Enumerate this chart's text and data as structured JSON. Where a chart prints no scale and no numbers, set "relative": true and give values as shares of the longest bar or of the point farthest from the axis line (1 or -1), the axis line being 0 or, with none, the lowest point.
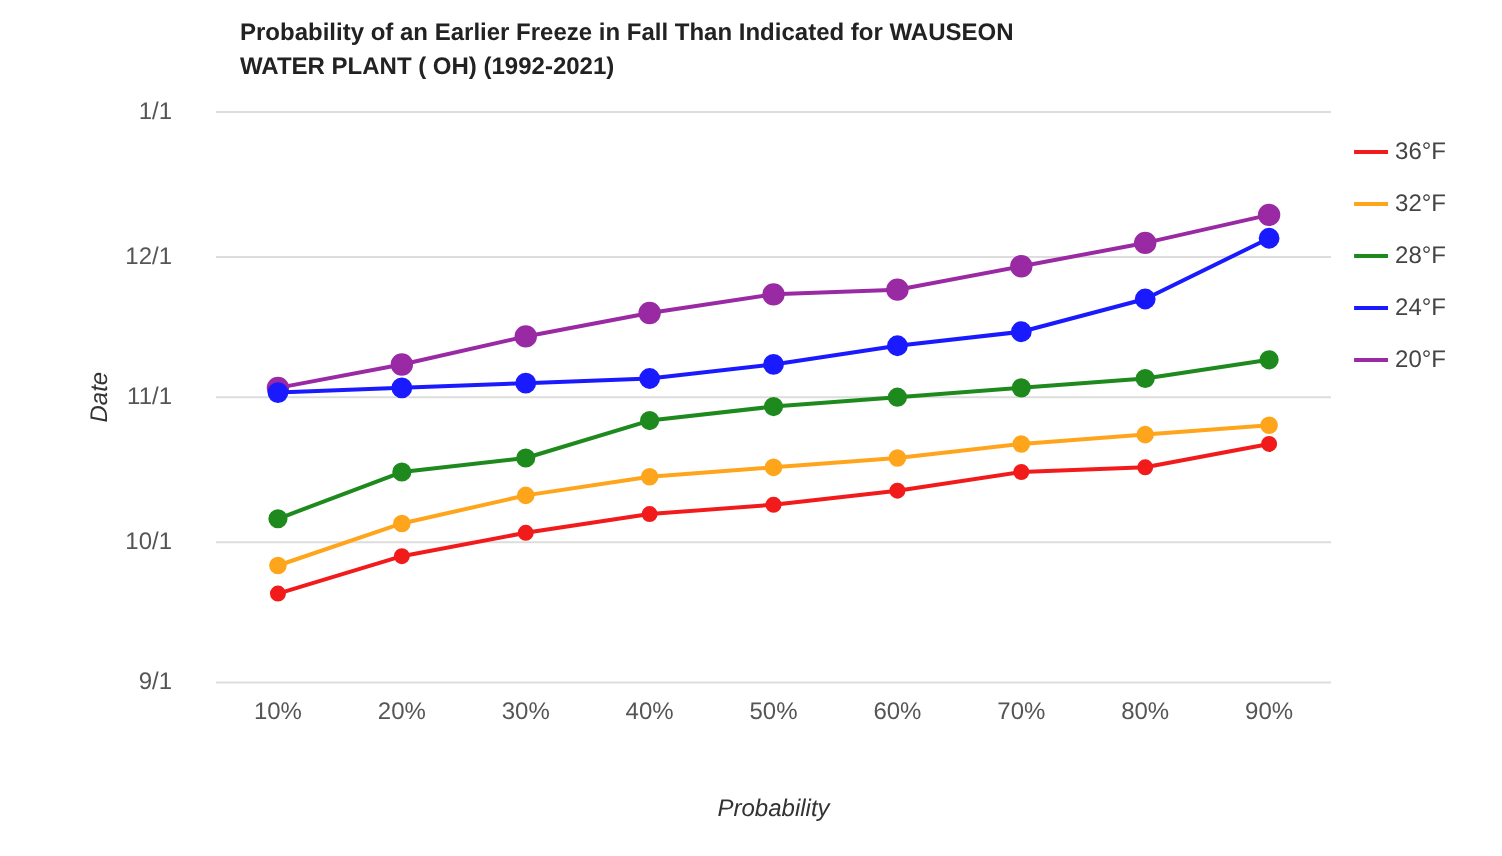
{
  "chart_data": {
    "type": "line",
    "title": "Probability of an Earlier Freeze in Fall Than Indicated for WAUSEON WATER PLANT ( OH) (1992-2021)",
    "xlabel": "Probability",
    "ylabel": "Date",
    "relative": true,
    "categories": [
      "10%",
      "20%",
      "30%",
      "40%",
      "50%",
      "60%",
      "70%",
      "80%",
      "90%"
    ],
    "series": [
      {
        "name": "36°F",
        "color": "#f21b1b",
        "values": [
          0.19,
          0.27,
          0.32,
          0.36,
          0.38,
          0.41,
          0.45,
          0.46,
          0.51
        ]
      },
      {
        "name": "32°F",
        "color": "#ffa51c",
        "values": [
          0.25,
          0.34,
          0.4,
          0.44,
          0.46,
          0.48,
          0.51,
          0.53,
          0.55
        ]
      },
      {
        "name": "28°F",
        "color": "#1e8a1e",
        "values": [
          0.35,
          0.45,
          0.48,
          0.56,
          0.59,
          0.61,
          0.63,
          0.65,
          0.69
        ]
      },
      {
        "name": "24°F",
        "color": "#1a1aff",
        "values": [
          0.62,
          0.63,
          0.64,
          0.65,
          0.68,
          0.72,
          0.75,
          0.82,
          0.95
        ]
      },
      {
        "name": "20°F",
        "color": "#992aa3",
        "values": [
          0.63,
          0.68,
          0.74,
          0.79,
          0.83,
          0.84,
          0.89,
          0.94,
          1
        ]
      }
    ],
    "ref_lines": [
      {
        "axis": "y",
        "value": 0,
        "color": "#dddddd"
      },
      {
        "axis": "y",
        "value": 0.3,
        "color": "#dddddd"
      },
      {
        "axis": "y",
        "value": 0.61,
        "color": "#dddddd"
      },
      {
        "axis": "y",
        "value": 0.91,
        "color": "#dddddd"
      },
      {
        "axis": "y",
        "value": 1.22,
        "color": "#dddddd"
      }
    ],
    "annotations": [
      "9/1",
      "10/1",
      "11/1",
      "12/1",
      "1/1"
    ],
    "legend": "top right",
    "marker": "circle",
    "line_style": "solid"
  }
}
